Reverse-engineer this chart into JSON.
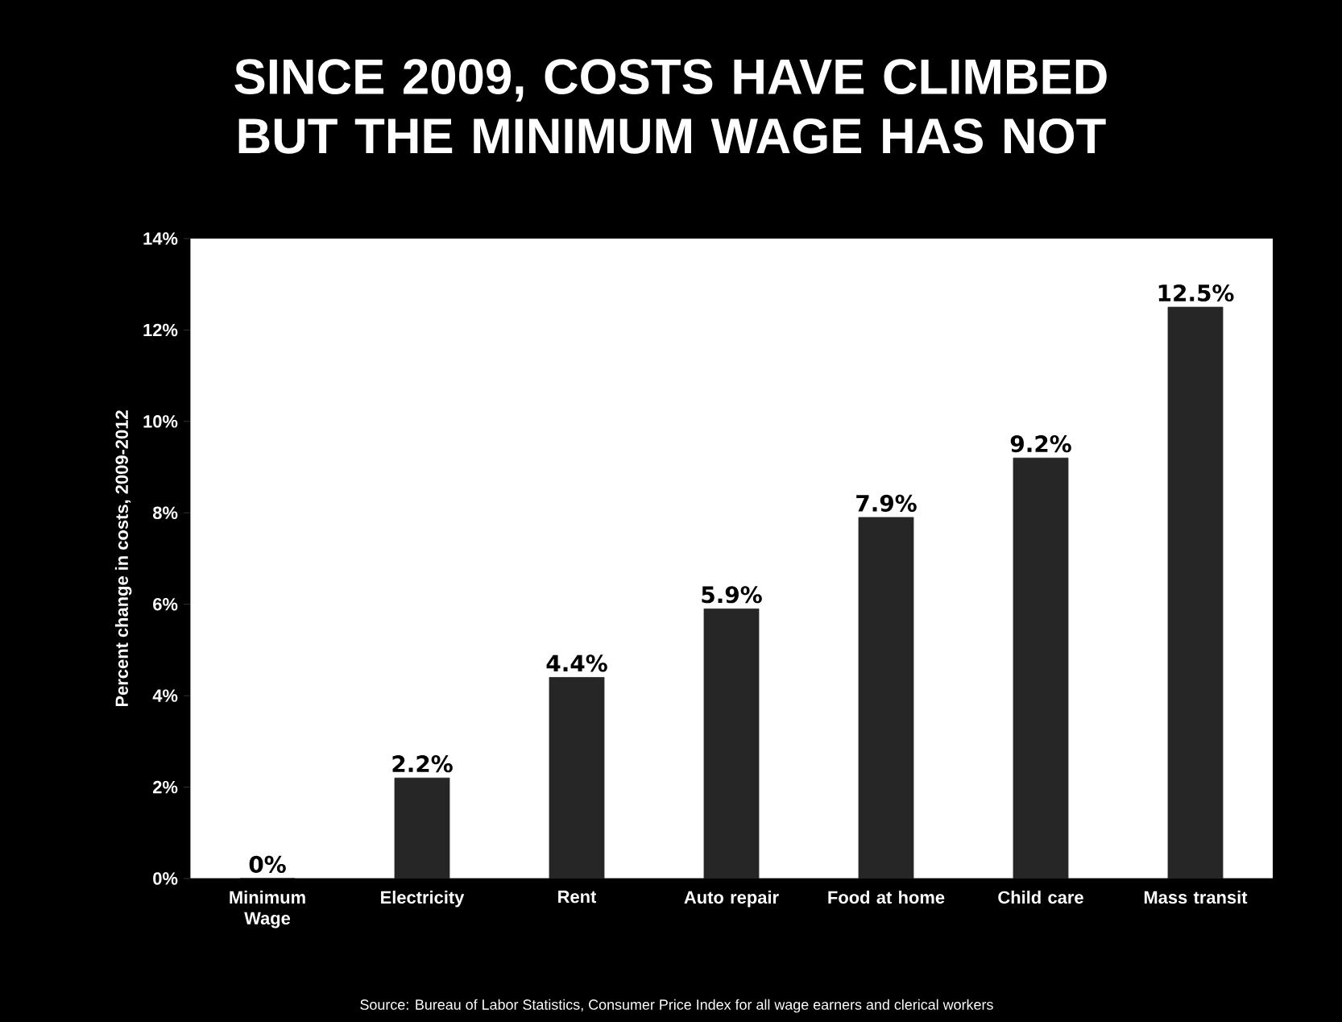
{
  "chart_data": {
    "type": "bar",
    "title": "SINCE 2009, COSTS HAVE CLIMBED BUT THE MINIMUM WAGE HAS NOT",
    "ylabel": "Percent change in costs, 2009-2012",
    "categories": [
      "Minimum Wage",
      "Electricity",
      "Rent",
      "Auto repair",
      "Food at home",
      "Child care",
      "Mass transit"
    ],
    "values": [
      0,
      2.2,
      4.4,
      5.9,
      7.9,
      9.2,
      12.5
    ],
    "value_labels": [
      "0%",
      "2.2%",
      "4.4%",
      "5.9%",
      "7.9%",
      "9.2%",
      "12.5%"
    ],
    "color": "#262626",
    "ylim": [
      0,
      14
    ],
    "yticks": [
      {
        "value": 0,
        "label": "0%"
      },
      {
        "value": 2,
        "label": "2%"
      },
      {
        "value": 4,
        "label": "4%"
      },
      {
        "value": 6,
        "label": "6%"
      },
      {
        "value": 8,
        "label": "8%"
      },
      {
        "value": 10,
        "label": "10%"
      },
      {
        "value": 12,
        "label": "12%"
      },
      {
        "value": 14,
        "label": "14%"
      }
    ],
    "annotations": [
      "Source: Bureau of Labor Statistics, Consumer Price Index for all wage earners and clerical workers"
    ]
  }
}
